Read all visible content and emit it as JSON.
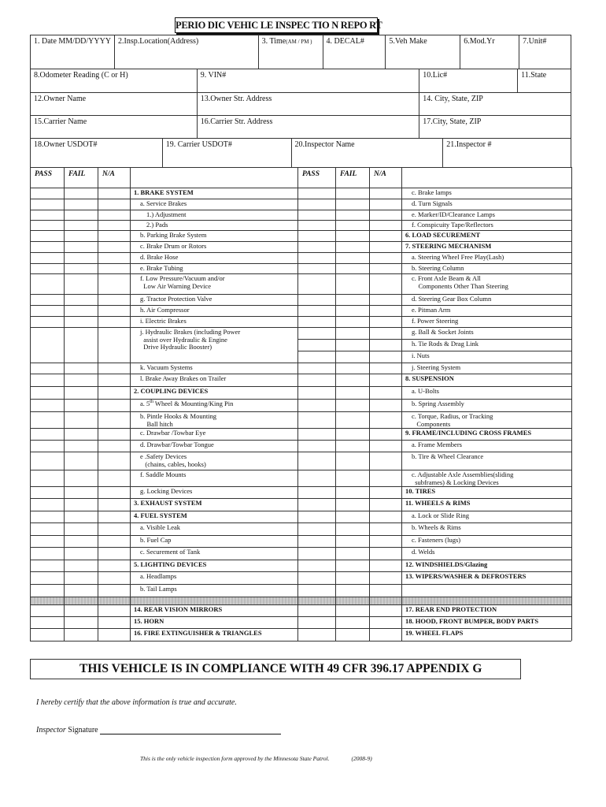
{
  "title": "PERIO DIC VEHIC LE INSPEC TIO N REPO RT",
  "header_rows": [
    [
      {
        "label": "1. Date MM/DD/YYYY"
      },
      {
        "label": "2.Insp.Location(Address)"
      },
      {
        "label": "3. Time",
        "small": "(AM / PM )"
      },
      {
        "label": "4. DECAL#"
      },
      {
        "label": "5.Veh Make"
      },
      {
        "label": "6.Mod.Yr"
      },
      {
        "label": "7.Unit#"
      }
    ],
    [
      {
        "label": "8.Odometer Reading (C or H)"
      },
      {
        "label": "9. VIN#"
      },
      {
        "label": "10.Lic#"
      },
      {
        "label": "11.State"
      }
    ],
    [
      {
        "label": "12.Owner Name"
      },
      {
        "label": "13.Owner Str. Address"
      },
      {
        "label": "14. City, State, ZIP"
      }
    ],
    [
      {
        "label": "15.Carrier Name"
      },
      {
        "label": "16.Carrier Str. Address"
      },
      {
        "label": "17.City, State, ZIP"
      }
    ],
    [
      {
        "label": "18.Owner USDOT#"
      },
      {
        "label": "19. Carrier USDOT#"
      },
      {
        "label": "20.Inspector Name"
      },
      {
        "label": "21.Inspector #"
      }
    ]
  ],
  "columns": {
    "pass": "PASS",
    "fail": "FAIL",
    "na": "N/A"
  },
  "left_items": [
    {
      "t": "1. BRAKE SYSTEM",
      "s": "b"
    },
    {
      "t": "a. Service Brakes",
      "s": "i1"
    },
    {
      "t": "1.) Adjustment",
      "s": "i2"
    },
    {
      "t": "2.) Pads",
      "s": "i2"
    },
    {
      "t": "b. Parking Brake System",
      "s": "i1"
    },
    {
      "t": "c. Brake Drum or Rotors",
      "s": "i1"
    },
    {
      "t": "d. Brake Hose",
      "s": "i1"
    },
    {
      "t": "e. Brake Tubing",
      "s": "i1"
    },
    {
      "t": "f. Low Pressure/Vacuum and/or\n  Low Air Warning Device",
      "s": "i1"
    },
    {
      "t": "g. Tractor Protection Valve",
      "s": "i1"
    },
    {
      "t": "h. Air Compressor",
      "s": "i1"
    },
    {
      "t": "i. Electric Brakes",
      "s": "i1"
    },
    {
      "t": "j. Hydraulic Brakes (including Power\n  assist over Hydraulic & Engine\n  Drive Hydraulic Booster)",
      "s": "i1"
    },
    {
      "t": "k. Vacuum Systems",
      "s": "i1"
    },
    {
      "t": "l. Brake Away Brakes on Trailer",
      "s": "i1"
    },
    {
      "t": "2. COUPLING DEVICES",
      "s": "b"
    },
    {
      "t": "a. 5",
      "sup": "th",
      "t2": " Wheel & Mounting/King Pin",
      "s": "i1"
    },
    {
      "t": "b. Pintle Hooks & Mounting\n    Ball hitch",
      "s": "i1"
    },
    {
      "t": "c. Drawbar /Towbar Eye",
      "s": "i1"
    },
    {
      "t": "d. Drawbar/Towbar Tongue",
      "s": "i1"
    },
    {
      "t": "e .Safety Devices\n   (chains, cables, hooks)",
      "s": "i1"
    },
    {
      "t": "f. Saddle Mounts",
      "s": "i1"
    },
    {
      "t": "g. Locking Devices",
      "s": "i1"
    },
    {
      "t": "3. EXHAUST SYSTEM",
      "s": "b"
    },
    {
      "t": "4. FUEL SYSTEM",
      "s": "b"
    },
    {
      "t": "a. Visible Leak",
      "s": "i1"
    },
    {
      "t": "b. Fuel Cap",
      "s": "i1"
    },
    {
      "t": "c. Securement of Tank",
      "s": "i1"
    },
    {
      "t": "5. LIGHTING DEVICES",
      "s": "b"
    },
    {
      "t": "a. Headlamps",
      "s": "i1"
    },
    {
      "t": "b. Tail Lamps",
      "s": "i1"
    },
    {
      "t": "",
      "s": "gray"
    },
    {
      "t": "14. REAR VISION MIRRORS",
      "s": "b"
    },
    {
      "t": "15. HORN",
      "s": "b"
    },
    {
      "t": "16. FIRE EXTINGUISHER & TRIANGLES",
      "s": "b"
    }
  ],
  "right_items": [
    {
      "t": "c. Brake lamps",
      "s": "i1"
    },
    {
      "t": "d. Turn Signals",
      "s": "i1"
    },
    {
      "t": "e. Marker/ID/Clearance Lamps",
      "s": "i1"
    },
    {
      "t": "f. Conspicuity Tape/Reflectors",
      "s": "i1"
    },
    {
      "t": "6. LOAD SECUREMENT",
      "s": "b"
    },
    {
      "t": "7. STEERING MECHANISM",
      "s": "b"
    },
    {
      "t": "a. Steering Wheel Free Play(Lash)",
      "s": "i1"
    },
    {
      "t": "b. Steering Column",
      "s": "i1"
    },
    {
      "t": "c. Front Axle Beam & All\n    Components Other Than Steering",
      "s": "i1"
    },
    {
      "t": "d. Steering Gear Box Column",
      "s": "i1"
    },
    {
      "t": "e. Pitman Arm",
      "s": "i1"
    },
    {
      "t": "f. Power Steering",
      "s": "i1"
    },
    {
      "t": "g. Ball & Socket Joints",
      "s": "i1"
    },
    {
      "t": "h. Tie Rods & Drag Link",
      "s": "i1"
    },
    {
      "t": "i. Nuts",
      "s": "i1"
    },
    {
      "t": "j. Steering System",
      "s": "i1"
    },
    {
      "t": "8. SUSPENSION",
      "s": "b"
    },
    {
      "t": "a. U-Bolts",
      "s": "i1"
    },
    {
      "t": "b. Spring Assembly",
      "s": "i1"
    },
    {
      "t": "c. Torque, Radius, or Tracking\n   Components",
      "s": "i1"
    },
    {
      "t": "9. FRAME/INCLUDING CROSS FRAMES",
      "s": "b"
    },
    {
      "t": "a. Frame Members",
      "s": "i1"
    },
    {
      "t": "b. Tire & Wheel Clearance",
      "s": "i1"
    },
    {
      "t": "c. Adjustable Axle Assemblies(sliding\n  subframes) & Locking Devices",
      "s": "i1"
    },
    {
      "t": "10. TIRES",
      "s": "b"
    },
    {
      "t": "11. WHEELS & RIMS",
      "s": "b"
    },
    {
      "t": "a. Lock or Slide Ring",
      "s": "i1"
    },
    {
      "t": "b. Wheels & Rims",
      "s": "i1"
    },
    {
      "t": "c. Fasteners (lugs)",
      "s": "i1"
    },
    {
      "t": "d. Welds",
      "s": "i1"
    },
    {
      "t": "12. WINDSHIELDS/Glazing",
      "s": "b"
    },
    {
      "t": "13. WIPERS/WASHER & DEFROSTERS",
      "s": "b"
    },
    {
      "t": "",
      "s": ""
    },
    {
      "t": "",
      "s": "gray"
    },
    {
      "t": "17. REAR END PROTECTION",
      "s": "b"
    },
    {
      "t": "18. HOOD, FRONT BUMPER, BODY PARTS",
      "s": "b"
    },
    {
      "t": "19. WHEEL FLAPS",
      "s": "b"
    }
  ],
  "compliance": "THIS VEHICLE IS IN COMPLIANCE WITH 49 CFR 396.17 APPENDIX G",
  "certify": "I hereby certify that the above information is true and accurate.",
  "signature": {
    "inspector": "Inspector",
    "label": "Signature"
  },
  "footer": {
    "note": "This is the only vehicle inspection form approved by the Minnesota State Patrol.",
    "version": "(2008-9)"
  }
}
